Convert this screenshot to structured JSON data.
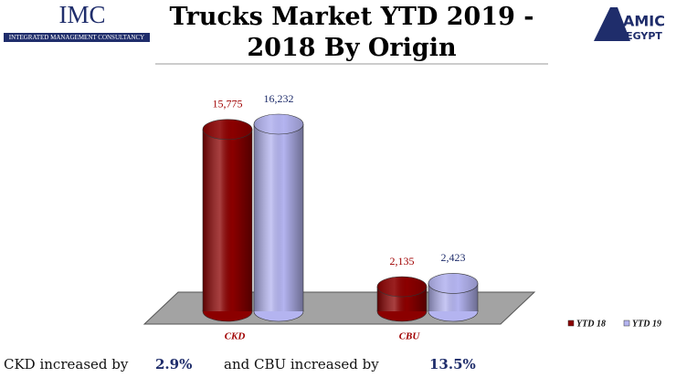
{
  "header": {
    "left_logo": {
      "name": "IMC",
      "subtitle": "INTEGRATED MANAGEMENT CONSULTANCY"
    },
    "right_logo": {
      "name": "AMIC",
      "country": "EGYPT"
    }
  },
  "chart_data": {
    "type": "bar",
    "title": "Trucks Market YTD 2019 - 2018 By Origin",
    "categories": [
      "CKD",
      "CBU"
    ],
    "series": [
      {
        "name": "YTD 18",
        "color": "#8b0000",
        "values": [
          15775,
          2135
        ],
        "value_labels": [
          "15,775",
          "2,135"
        ]
      },
      {
        "name": "YTD 19",
        "color": "#b4b4f0",
        "values": [
          16232,
          2423
        ],
        "value_labels": [
          "16,232",
          "2,423"
        ]
      }
    ]
  },
  "footer": {
    "parts": [
      "CKD increased by",
      "2.9%",
      "and CBU increased by",
      "13.5%"
    ]
  }
}
